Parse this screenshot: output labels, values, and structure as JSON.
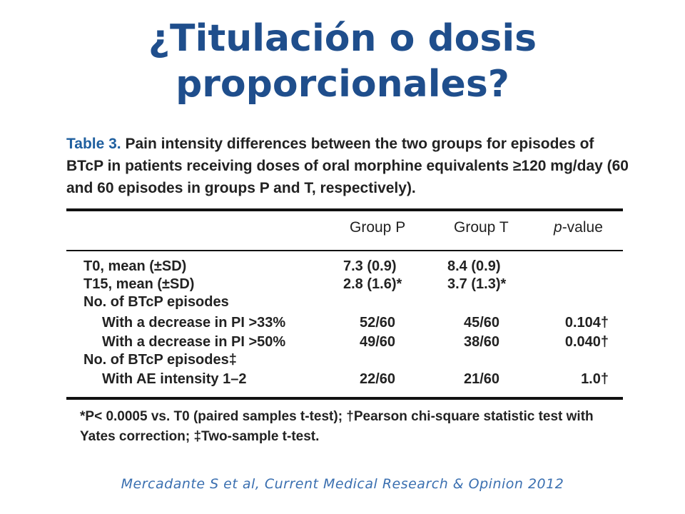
{
  "title": {
    "line1": "¿Titulación o dosis",
    "line2": "proporcionales?"
  },
  "table": {
    "label": "Table 3.",
    "caption": "Pain intensity differences between the two groups for episodes of BTcP in patients receiving doses of oral morphine equivalents ≥120 mg/day (60 and 60 episodes in groups P and T, respectively).",
    "headers": {
      "group_p": "Group P",
      "group_t": "Group T",
      "p_value_italic": "p",
      "p_value_rest": "-value"
    },
    "rows": [
      {
        "label": "T0, mean (±SD)",
        "p": "7.3 (0.9)",
        "t": "8.4 (0.9)",
        "v": ""
      },
      {
        "label": "T15, mean (±SD)",
        "p": "2.8 (1.6)*",
        "t": "3.7 (1.3)*",
        "v": ""
      },
      {
        "label": "No. of BTcP episodes",
        "p": "",
        "t": "",
        "v": ""
      },
      {
        "label": "With a decrease in PI >33%",
        "p": "52/60",
        "t": "45/60",
        "v": "0.104†"
      },
      {
        "label": "With a decrease in PI >50%",
        "p": "49/60",
        "t": "38/60",
        "v": "0.040†"
      },
      {
        "label": "No. of BTcP episodes‡",
        "p": "",
        "t": "",
        "v": ""
      },
      {
        "label": "With AE intensity 1–2",
        "p": "22/60",
        "t": "21/60",
        "v": "1.0†"
      }
    ],
    "footnote": "*P< 0.0005 vs. T0 (paired samples t-test); †Pearson chi-square statistic test with Yates correction; ‡Two-sample t-test."
  },
  "citation": "Mercadante S et al,  Current Medical Research & Opinion 2012"
}
